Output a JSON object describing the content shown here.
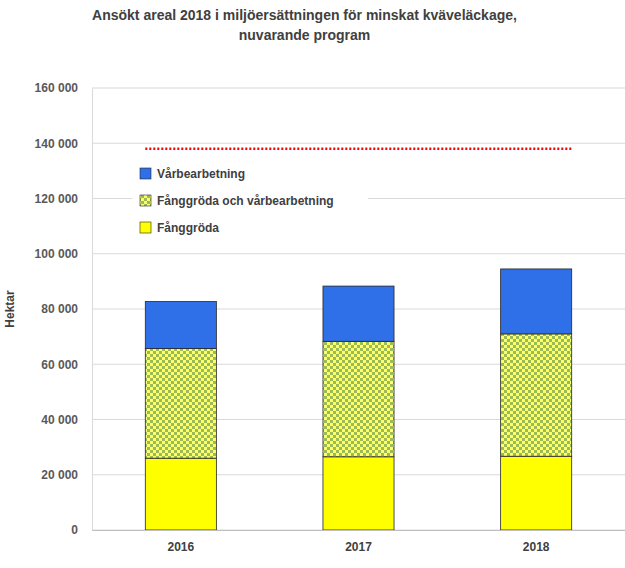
{
  "chart_data": {
    "type": "bar",
    "title": "Ansökt areal 2018 i miljöersättningen för minskat kväveläckage, nuvarande program",
    "y_label": "Hektar",
    "categories": [
      "2016",
      "2017",
      "2018"
    ],
    "series": [
      {
        "name": "Fånggröda",
        "color": "#ffff00",
        "values": [
          26000,
          26500,
          26700
        ]
      },
      {
        "name": "Fånggröda och vårbearbetning",
        "color": "#9bbb59",
        "values": [
          39700,
          41800,
          44300
        ]
      },
      {
        "name": "Vårbearbetning",
        "color": "#2f6fe8",
        "values": [
          17000,
          20000,
          23500
        ]
      }
    ],
    "stacked": true,
    "reference_line": 138000,
    "ylim": [
      0,
      160000
    ],
    "yticks": [
      0,
      {
        "value": 20000,
        "label": "20 000"
      },
      {
        "value": 40000,
        "label": "40 000"
      },
      {
        "value": 60000,
        "label": "60 000"
      },
      {
        "value": 80000,
        "label": "80 000"
      },
      {
        "value": 100000,
        "label": "100 000"
      },
      {
        "value": 120000,
        "label": "120 000"
      },
      {
        "value": 140000,
        "label": "140 000"
      },
      {
        "value": 160000,
        "label": "160 000"
      }
    ],
    "grid": true,
    "legend": "top-left"
  }
}
